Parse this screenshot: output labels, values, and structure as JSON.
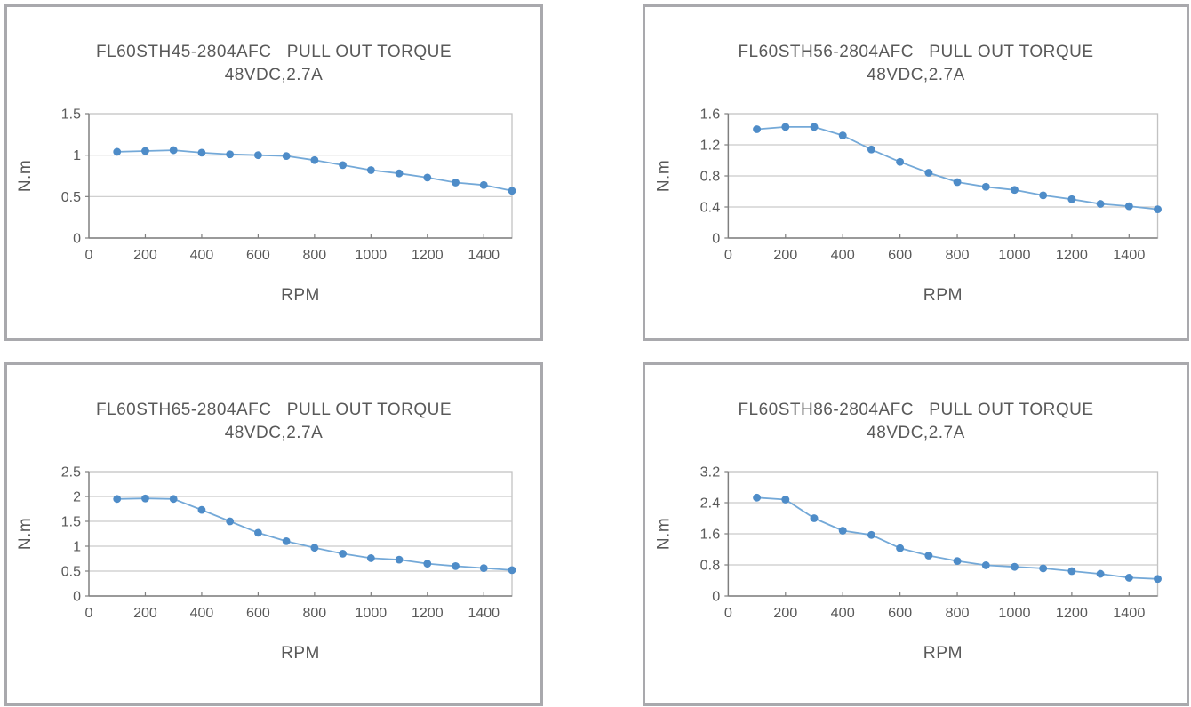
{
  "styles": {
    "marker_color": "#4e8cc8",
    "line_color": "#74a9d8",
    "grid_color": "#c9c9c9",
    "plot_border_color": "#c2c2c2",
    "axis_color": "#7f7f7f",
    "text_color": "#595959",
    "panel_border_color": "#a9a9ad"
  },
  "chart_data": [
    {
      "type": "line",
      "title": "FL60STH45-2804AFC   PULL OUT TORQUE",
      "subtitle": "48VDC,2.7A",
      "xlabel": "RPM",
      "ylabel": "N.m",
      "xlim": [
        0,
        1500
      ],
      "ylim": [
        0,
        1.5
      ],
      "grid": "horizontal",
      "legend": "none",
      "x": [
        100,
        200,
        300,
        400,
        500,
        600,
        700,
        800,
        900,
        1000,
        1100,
        1200,
        1300,
        1400,
        1500
      ],
      "values": [
        1.04,
        1.05,
        1.06,
        1.03,
        1.01,
        1.0,
        0.99,
        0.94,
        0.88,
        0.82,
        0.78,
        0.73,
        0.67,
        0.64,
        0.57
      ],
      "x_ticks": [
        {
          "value": 0,
          "label": "0"
        },
        {
          "value": 200,
          "label": "200"
        },
        {
          "value": 400,
          "label": "400"
        },
        {
          "value": 600,
          "label": "600"
        },
        {
          "value": 800,
          "label": "800"
        },
        {
          "value": 1000,
          "label": "1000"
        },
        {
          "value": 1200,
          "label": "1200"
        },
        {
          "value": 1400,
          "label": "1400"
        }
      ],
      "y_ticks": [
        {
          "value": 0,
          "label": "0"
        },
        {
          "value": 0.5,
          "label": "0.5"
        },
        {
          "value": 1,
          "label": "1"
        },
        {
          "value": 1.5,
          "label": "1.5"
        }
      ]
    },
    {
      "type": "line",
      "title": "FL60STH56-2804AFC   PULL OUT TORQUE",
      "subtitle": "48VDC,2.7A",
      "xlabel": "RPM",
      "ylabel": "N.m",
      "xlim": [
        0,
        1500
      ],
      "ylim": [
        0,
        1.6
      ],
      "grid": "horizontal",
      "legend": "none",
      "x": [
        100,
        200,
        300,
        400,
        500,
        600,
        700,
        800,
        900,
        1000,
        1100,
        1200,
        1300,
        1400,
        1500
      ],
      "values": [
        1.4,
        1.43,
        1.43,
        1.32,
        1.14,
        0.98,
        0.84,
        0.72,
        0.66,
        0.62,
        0.55,
        0.5,
        0.44,
        0.41,
        0.37
      ],
      "x_ticks": [
        {
          "value": 0,
          "label": "0"
        },
        {
          "value": 200,
          "label": "200"
        },
        {
          "value": 400,
          "label": "400"
        },
        {
          "value": 600,
          "label": "600"
        },
        {
          "value": 800,
          "label": "800"
        },
        {
          "value": 1000,
          "label": "1000"
        },
        {
          "value": 1200,
          "label": "1200"
        },
        {
          "value": 1400,
          "label": "1400"
        }
      ],
      "y_ticks": [
        {
          "value": 0,
          "label": "0"
        },
        {
          "value": 0.4,
          "label": "0.4"
        },
        {
          "value": 0.8,
          "label": "0.8"
        },
        {
          "value": 1.2,
          "label": "1.2"
        },
        {
          "value": 1.6,
          "label": "1.6"
        }
      ]
    },
    {
      "type": "line",
      "title": "FL60STH65-2804AFC   PULL OUT TORQUE",
      "subtitle": "48VDC,2.7A",
      "xlabel": "RPM",
      "ylabel": "N.m",
      "xlim": [
        0,
        1500
      ],
      "ylim": [
        0,
        2.5
      ],
      "grid": "horizontal",
      "legend": "none",
      "x": [
        100,
        200,
        300,
        400,
        500,
        600,
        700,
        800,
        900,
        1000,
        1100,
        1200,
        1300,
        1400,
        1500
      ],
      "values": [
        1.95,
        1.96,
        1.95,
        1.73,
        1.5,
        1.27,
        1.1,
        0.97,
        0.85,
        0.76,
        0.73,
        0.65,
        0.6,
        0.56,
        0.52
      ],
      "x_ticks": [
        {
          "value": 0,
          "label": "0"
        },
        {
          "value": 200,
          "label": "200"
        },
        {
          "value": 400,
          "label": "400"
        },
        {
          "value": 600,
          "label": "600"
        },
        {
          "value": 800,
          "label": "800"
        },
        {
          "value": 1000,
          "label": "1000"
        },
        {
          "value": 1200,
          "label": "1200"
        },
        {
          "value": 1400,
          "label": "1400"
        }
      ],
      "y_ticks": [
        {
          "value": 0,
          "label": "0"
        },
        {
          "value": 0.5,
          "label": "0.5"
        },
        {
          "value": 1,
          "label": "1"
        },
        {
          "value": 1.5,
          "label": "1.5"
        },
        {
          "value": 2,
          "label": "2"
        },
        {
          "value": 2.5,
          "label": "2.5"
        }
      ]
    },
    {
      "type": "line",
      "title": "FL60STH86-2804AFC   PULL OUT TORQUE",
      "subtitle": "48VDC,2.7A",
      "xlabel": "RPM",
      "ylabel": "N.m",
      "xlim": [
        0,
        1500
      ],
      "ylim": [
        0,
        3.2
      ],
      "grid": "horizontal",
      "legend": "none",
      "x": [
        100,
        200,
        300,
        400,
        500,
        600,
        700,
        800,
        900,
        1000,
        1100,
        1200,
        1300,
        1400,
        1500
      ],
      "values": [
        2.53,
        2.48,
        2.0,
        1.68,
        1.57,
        1.23,
        1.04,
        0.9,
        0.79,
        0.75,
        0.71,
        0.64,
        0.57,
        0.47,
        0.44
      ],
      "x_ticks": [
        {
          "value": 0,
          "label": "0"
        },
        {
          "value": 200,
          "label": "200"
        },
        {
          "value": 400,
          "label": "400"
        },
        {
          "value": 600,
          "label": "600"
        },
        {
          "value": 800,
          "label": "800"
        },
        {
          "value": 1000,
          "label": "1000"
        },
        {
          "value": 1200,
          "label": "1200"
        },
        {
          "value": 1400,
          "label": "1400"
        }
      ],
      "y_ticks": [
        {
          "value": 0,
          "label": "0"
        },
        {
          "value": 0.8,
          "label": "0.8"
        },
        {
          "value": 1.6,
          "label": "1.6"
        },
        {
          "value": 2.4,
          "label": "2.4"
        },
        {
          "value": 3.2,
          "label": "3.2"
        }
      ]
    }
  ]
}
